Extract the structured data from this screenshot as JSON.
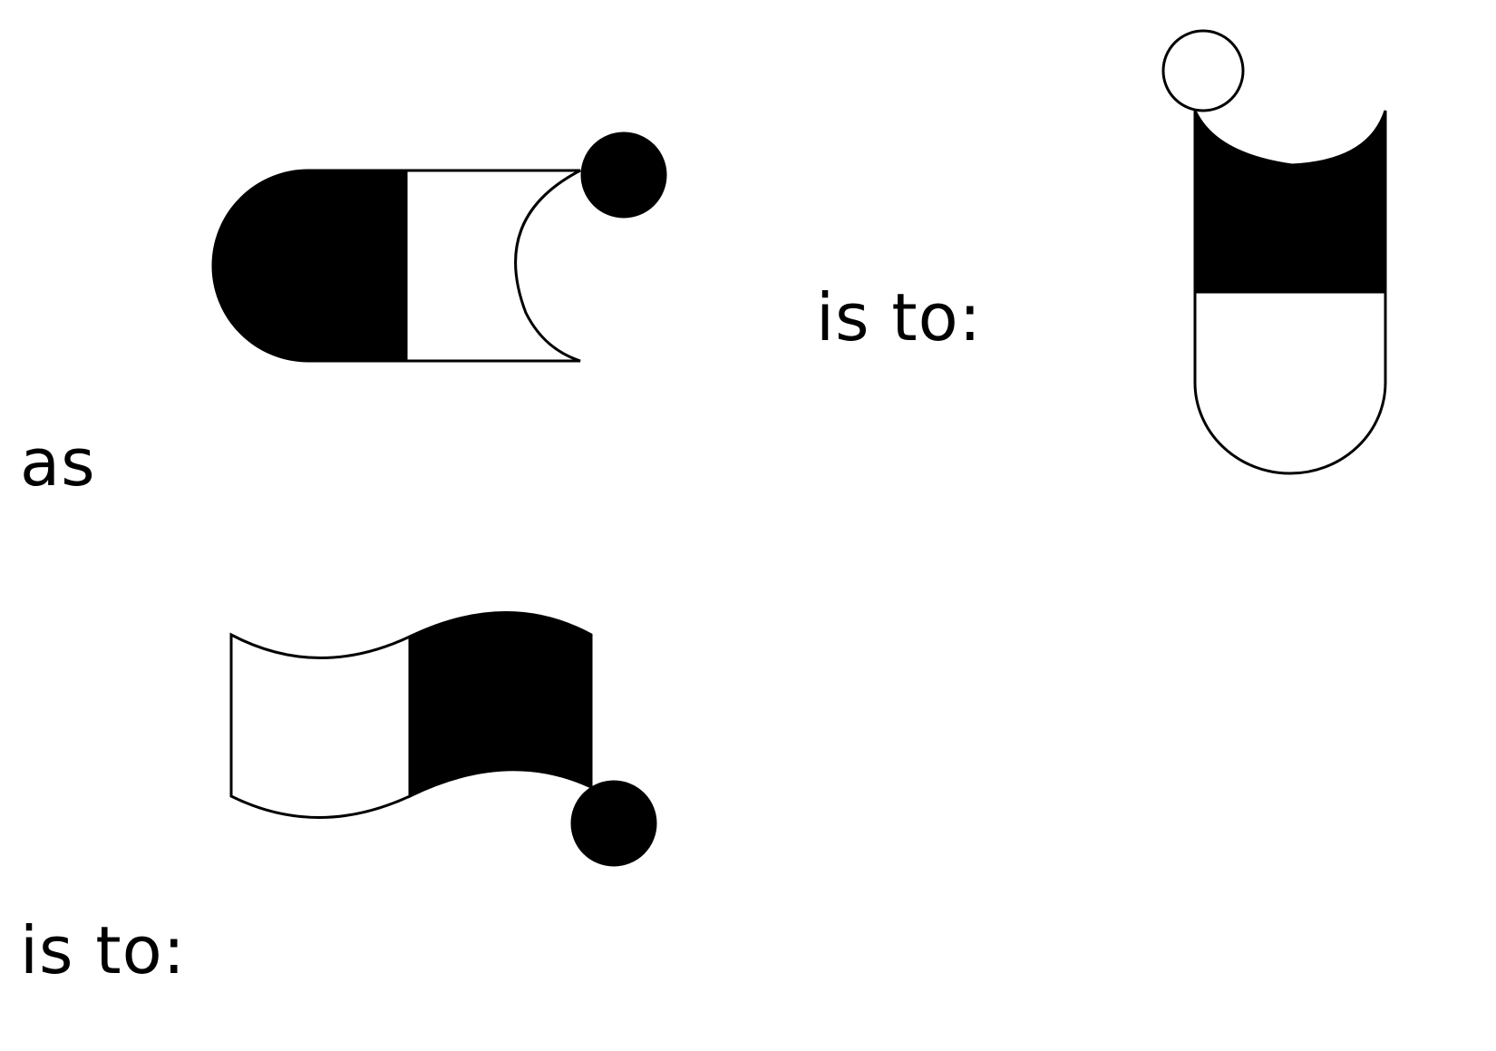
{
  "labels": {
    "is_to_top": "is to:",
    "as": "as",
    "is_to_bottom": "is to:"
  },
  "colors": {
    "ink": "#000000",
    "paper": "#ffffff"
  },
  "figures": [
    {
      "id": "capsule-horizontal",
      "description_icon": "capsule-horizontal-icon"
    },
    {
      "id": "capsule-vertical",
      "description_icon": "capsule-vertical-icon"
    },
    {
      "id": "wave-flag",
      "description_icon": "wave-flag-icon"
    }
  ]
}
